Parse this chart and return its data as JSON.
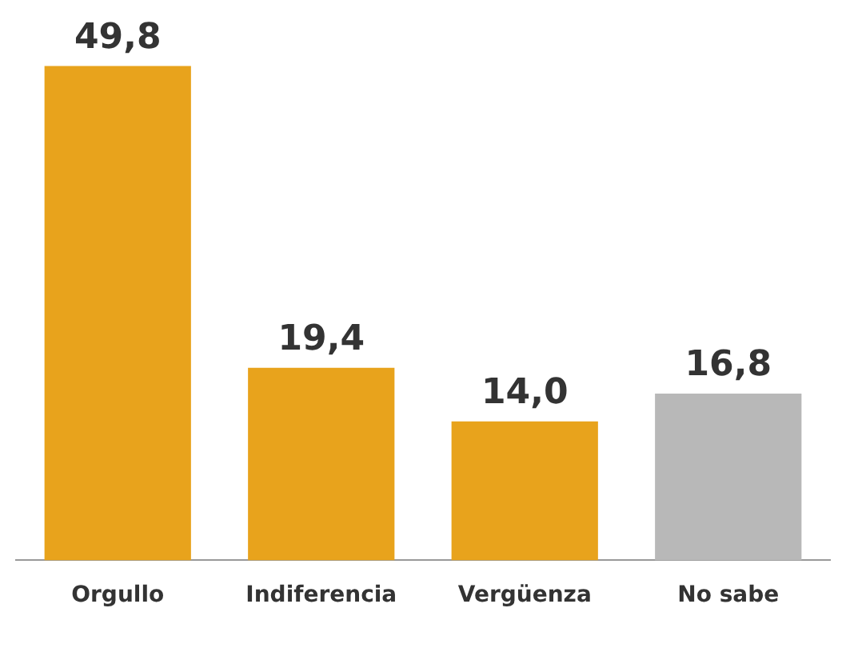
{
  "chart_data": {
    "type": "bar",
    "categories": [
      "Orgullo",
      "Indiferencia",
      "Vergüenza",
      "No sabe"
    ],
    "values": [
      49.8,
      19.4,
      14.0,
      16.8
    ],
    "colors": [
      "#e8a31c",
      "#e8a31c",
      "#e8a31c",
      "#b8b8b8"
    ],
    "value_labels": [
      "49,8",
      "19,4",
      "14,0",
      "16,8"
    ]
  }
}
